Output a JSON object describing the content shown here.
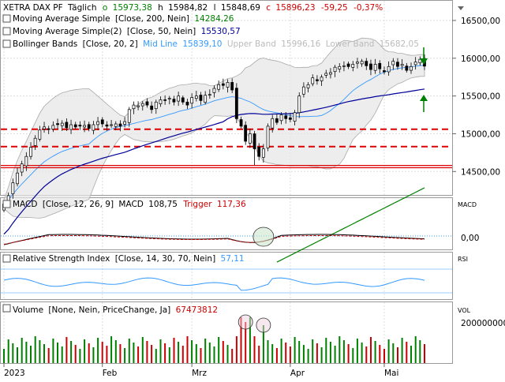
{
  "header": {
    "instrument": "XETRA DAX PF",
    "period": "Täglich",
    "open_label": "o",
    "open": "15973,38",
    "high_label": "h",
    "high": "15984,82",
    "low_label": "l",
    "low": "15848,69",
    "close_label": "c",
    "close": "15896,23",
    "change": "-59,25",
    "change_pct": "-0,37%"
  },
  "indicators": [
    {
      "label": "Moving Average Simple",
      "params": "[Close, 200, Nein]",
      "value": "14284,26",
      "color": "#008000"
    },
    {
      "label": "Moving Average Simple(2)",
      "params": "[Close, 50, Nein]",
      "value": "15530,57",
      "color": "#000099"
    },
    {
      "label": "Bollinger Bands",
      "params": "[Close, 20, 2]",
      "mid_label": "Mid Line",
      "mid": "15839,10",
      "upper_label": "Upper Band",
      "upper": "15996,16",
      "lower_label": "Lower Band",
      "lower": "15682,05",
      "color": "#3399ff"
    }
  ],
  "panels": {
    "macd": {
      "title": "MACD",
      "params": "[Close, 12, 26, 9]",
      "macd_label": "MACD",
      "macd_value": "108,75",
      "trigger_label": "Trigger",
      "trigger_value": "117,36",
      "side_label": "MACD",
      "tick": "0,00"
    },
    "rsi": {
      "title": "Relative Strength Index",
      "params": "[Close, 14, 30, 70, Nein]",
      "value": "57,11",
      "side_label": "RSI"
    },
    "volume": {
      "title": "Volume",
      "params": "[None, Nein, PriceChange, Ja]",
      "value": "67473812",
      "side_label": "VOL",
      "tick": "200000000"
    }
  },
  "colors": {
    "up": "#008000",
    "down": "#cc0000",
    "support": "#dd0000",
    "ma200": "#008000",
    "ma50": "#000099",
    "bollinger": "#3399ff"
  },
  "chart_data": {
    "type": "candlestick",
    "y_ticks": [
      "16500,00",
      "16000,00",
      "15500,00",
      "15000,00",
      "14500,00"
    ],
    "y_tick_values": [
      16500,
      16000,
      15500,
      15000,
      14500
    ],
    "ylim": [
      14200,
      16750
    ],
    "x_labels": [
      "2023",
      "Feb",
      "Mrz",
      "Apr",
      "Mai"
    ],
    "x_label_index": [
      0,
      22,
      42,
      64,
      85
    ],
    "support_levels": [
      15060,
      14830,
      14580,
      14550
    ],
    "close": [
      14070,
      14180,
      14350,
      14480,
      14600,
      14700,
      14820,
      14940,
      15050,
      15090,
      15060,
      15110,
      15120,
      15140,
      15080,
      15120,
      15090,
      15100,
      15110,
      15070,
      15120,
      15160,
      15130,
      15100,
      15120,
      15130,
      15100,
      15160,
      15320,
      15380,
      15370,
      15400,
      15380,
      15320,
      15420,
      15450,
      15440,
      15470,
      15420,
      15500,
      15420,
      15380,
      15480,
      15500,
      15440,
      15510,
      15520,
      15600,
      15650,
      15640,
      15680,
      15580,
      15200,
      15100,
      14900,
      15000,
      14800,
      14700,
      14800,
      15100,
      15200,
      15150,
      15250,
      15200,
      15190,
      15280,
      15500,
      15620,
      15650,
      15740,
      15700,
      15750,
      15800,
      15810,
      15880,
      15890,
      15900,
      15890,
      15920,
      15950,
      15960,
      15900,
      15850,
      15920,
      15860,
      15820,
      15890,
      15960,
      15890,
      15920,
      15840,
      15890,
      15950,
      15985,
      15896
    ],
    "ma200_start": 13300,
    "ma200_end": 14284.26,
    "ma200_first_index": 61,
    "macd": {
      "zero_tick": 0,
      "last_macd": 108.75,
      "last_trigger": 117.36
    },
    "rsi": {
      "last": 57.11,
      "levels": [
        30,
        70
      ]
    },
    "volume": {
      "tick": 200000000,
      "last": 67473812
    },
    "annotations": [
      "up-arrow-upper-band",
      "up-arrow-lower-band",
      "circle-macd-cross",
      "circles-volume-spikes"
    ]
  }
}
